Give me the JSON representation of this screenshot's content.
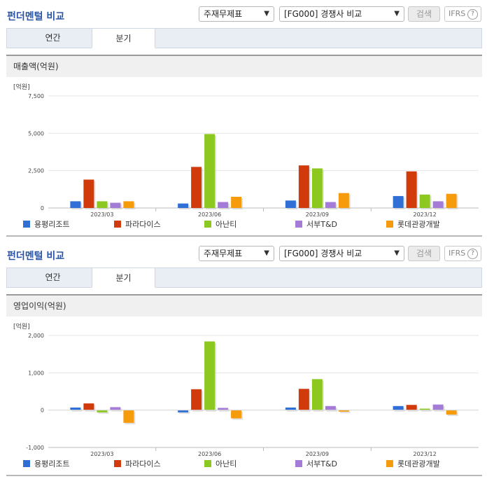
{
  "sections": [
    {
      "title": "펀더멘털 비교",
      "select1": "주재무제표",
      "select2": "[FG000] 경쟁사 비교",
      "search_label": "검색",
      "ifrs_label": "IFRS",
      "help_glyph": "?",
      "tabs": [
        "연간",
        "분기"
      ],
      "active_tab": "분기",
      "metric_title": "매출액(억원)"
    },
    {
      "title": "펀더멘털 비교",
      "select1": "주재무제표",
      "select2": "[FG000] 경쟁사 비교",
      "search_label": "검색",
      "ifrs_label": "IFRS",
      "help_glyph": "?",
      "tabs": [
        "연간",
        "분기"
      ],
      "active_tab": "분기",
      "metric_title": "영업이익(억원)"
    }
  ],
  "chart_data": [
    {
      "type": "bar",
      "unit_label": "[억원]",
      "categories": [
        "2023/03",
        "2023/06",
        "2023/09",
        "2023/12"
      ],
      "ylim": [
        0,
        7500
      ],
      "yticks": [
        0,
        2500,
        5000,
        7500
      ],
      "ytick_labels": [
        "0",
        "2,500",
        "5,000",
        "7,500"
      ],
      "legend_position": "bottom",
      "series": [
        {
          "name": "용평리조트",
          "color": "#2f6fd6",
          "values": [
            450,
            300,
            500,
            800
          ]
        },
        {
          "name": "파라다이스",
          "color": "#d13a0b",
          "values": [
            1900,
            2750,
            2850,
            2450
          ]
        },
        {
          "name": "아난티",
          "color": "#8cc820",
          "values": [
            450,
            4950,
            2650,
            900
          ]
        },
        {
          "name": "서부T&D",
          "color": "#a57bd8",
          "values": [
            350,
            400,
            400,
            450
          ]
        },
        {
          "name": "롯데관광개발",
          "color": "#f59b0c",
          "values": [
            450,
            750,
            1000,
            950
          ]
        }
      ]
    },
    {
      "type": "bar",
      "unit_label": "[억원]",
      "categories": [
        "2023/03",
        "2023/06",
        "2023/09",
        "2023/12"
      ],
      "ylim": [
        -1000,
        2000
      ],
      "yticks": [
        -1000,
        0,
        1000,
        2000
      ],
      "ytick_labels": [
        "-1,000",
        "0",
        "1,000",
        "2,000"
      ],
      "legend_position": "bottom",
      "series": [
        {
          "name": "용평리조트",
          "color": "#2f6fd6",
          "values": [
            70,
            -60,
            70,
            110
          ]
        },
        {
          "name": "파라다이스",
          "color": "#d13a0b",
          "values": [
            180,
            560,
            570,
            140
          ]
        },
        {
          "name": "아난티",
          "color": "#8cc820",
          "values": [
            -60,
            1840,
            830,
            40
          ]
        },
        {
          "name": "서부T&D",
          "color": "#a57bd8",
          "values": [
            80,
            60,
            110,
            150
          ]
        },
        {
          "name": "롯데관광개발",
          "color": "#f59b0c",
          "values": [
            -340,
            -220,
            -40,
            -120
          ]
        }
      ]
    }
  ]
}
